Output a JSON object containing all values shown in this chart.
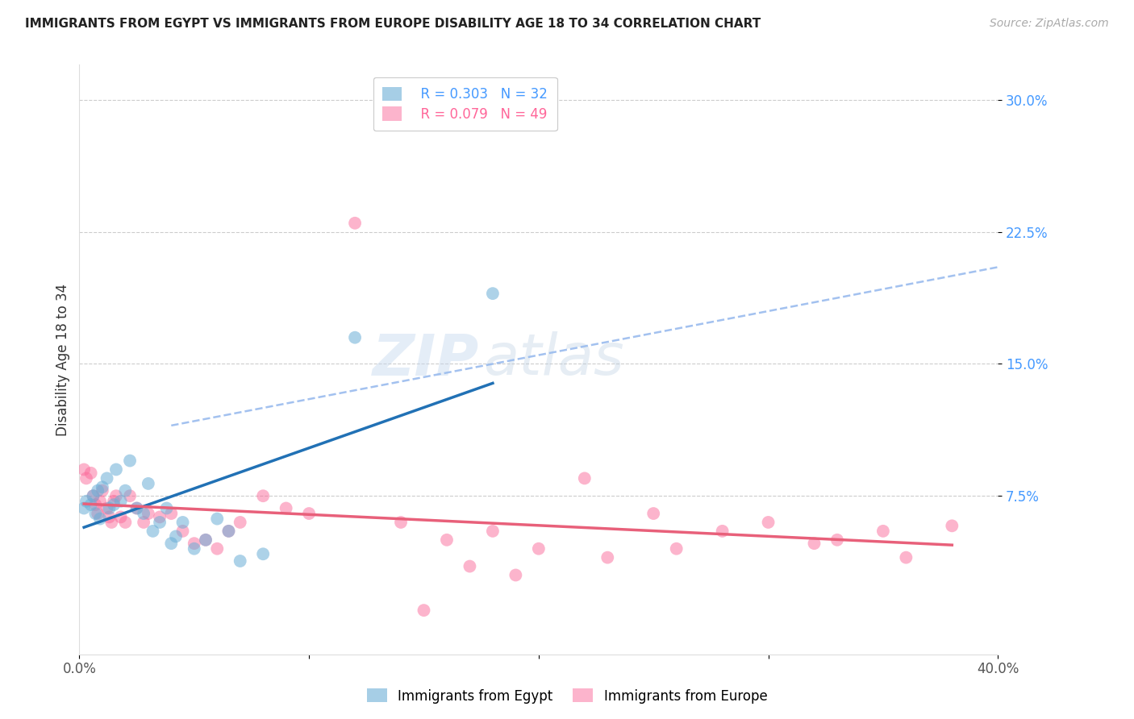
{
  "title": "IMMIGRANTS FROM EGYPT VS IMMIGRANTS FROM EUROPE DISABILITY AGE 18 TO 34 CORRELATION CHART",
  "source": "Source: ZipAtlas.com",
  "ylabel": "Disability Age 18 to 34",
  "yaxis_labels": [
    "30.0%",
    "22.5%",
    "15.0%",
    "7.5%"
  ],
  "yaxis_values": [
    0.3,
    0.225,
    0.15,
    0.075
  ],
  "xlim": [
    0.0,
    0.4
  ],
  "ylim": [
    -0.015,
    0.32
  ],
  "legend_egypt_R": "R = 0.303",
  "legend_egypt_N": "N = 32",
  "legend_europe_R": "R = 0.079",
  "legend_europe_N": "N = 49",
  "egypt_color": "#6baed6",
  "europe_color": "#fb6a9a",
  "egypt_line_color": "#2171b5",
  "europe_line_color": "#e8607a",
  "dashed_line_color": "#99bbee",
  "watermark_zip": "ZIP",
  "watermark_atlas": "atlas",
  "egypt_x": [
    0.002,
    0.003,
    0.005,
    0.006,
    0.007,
    0.008,
    0.009,
    0.01,
    0.012,
    0.013,
    0.015,
    0.016,
    0.018,
    0.02,
    0.022,
    0.025,
    0.028,
    0.03,
    0.032,
    0.035,
    0.038,
    0.04,
    0.042,
    0.045,
    0.05,
    0.055,
    0.06,
    0.065,
    0.07,
    0.08,
    0.12,
    0.18
  ],
  "egypt_y": [
    0.068,
    0.072,
    0.07,
    0.075,
    0.065,
    0.078,
    0.062,
    0.08,
    0.085,
    0.068,
    0.07,
    0.09,
    0.072,
    0.078,
    0.095,
    0.068,
    0.065,
    0.082,
    0.055,
    0.06,
    0.068,
    0.048,
    0.052,
    0.06,
    0.045,
    0.05,
    0.062,
    0.055,
    0.038,
    0.042,
    0.165,
    0.19
  ],
  "europe_x": [
    0.002,
    0.003,
    0.005,
    0.006,
    0.007,
    0.008,
    0.009,
    0.01,
    0.012,
    0.013,
    0.014,
    0.015,
    0.016,
    0.018,
    0.02,
    0.022,
    0.025,
    0.028,
    0.03,
    0.035,
    0.04,
    0.045,
    0.05,
    0.055,
    0.06,
    0.065,
    0.07,
    0.08,
    0.09,
    0.1,
    0.12,
    0.14,
    0.16,
    0.18,
    0.2,
    0.22,
    0.25,
    0.28,
    0.3,
    0.32,
    0.35,
    0.38,
    0.15,
    0.17,
    0.19,
    0.23,
    0.26,
    0.33,
    0.36
  ],
  "europe_y": [
    0.09,
    0.085,
    0.088,
    0.075,
    0.07,
    0.065,
    0.072,
    0.078,
    0.068,
    0.063,
    0.06,
    0.072,
    0.075,
    0.063,
    0.06,
    0.075,
    0.068,
    0.06,
    0.065,
    0.063,
    0.065,
    0.055,
    0.048,
    0.05,
    0.045,
    0.055,
    0.06,
    0.075,
    0.068,
    0.065,
    0.23,
    0.06,
    0.05,
    0.055,
    0.045,
    0.085,
    0.065,
    0.055,
    0.06,
    0.048,
    0.055,
    0.058,
    0.01,
    0.035,
    0.03,
    0.04,
    0.045,
    0.05,
    0.04
  ],
  "background_color": "#ffffff",
  "grid_color": "#cccccc",
  "legend_R_color_egypt": "#4499ff",
  "legend_N_color_egypt": "#33bb33",
  "legend_R_color_europe": "#ff6699",
  "legend_N_color_europe": "#33bb33"
}
